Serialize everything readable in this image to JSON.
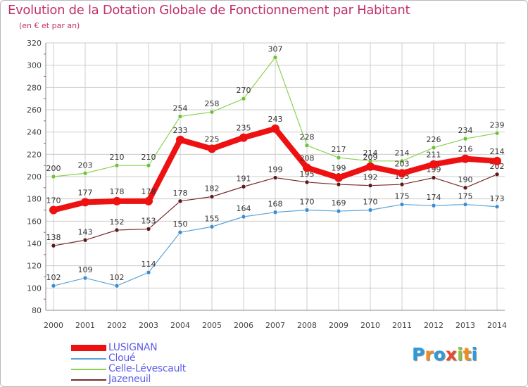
{
  "header": {
    "title": "Evolution de la Dotation Globale de Fonctionnement par Habitant",
    "subtitle": "(en € et par an)"
  },
  "colors": {
    "title": "#c0316b",
    "legend_text": "#5d5de8",
    "grid": "#cccccc",
    "axis_text": "#444444"
  },
  "logo": {
    "letters": [
      "P",
      "r",
      "o",
      "x",
      "i",
      "t",
      "i"
    ],
    "colors": [
      "#2d9adb",
      "#f08d1f",
      "#2d9adb",
      "#e84a2b",
      "#8cc63f",
      "#f08d1f",
      "#2d9adb"
    ]
  },
  "chart_data": {
    "type": "line",
    "title": "Evolution de la Dotation Globale de Fonctionnement par Habitant",
    "subtitle": "(en € et par an)",
    "xlabel": "",
    "ylabel": "",
    "ylim": [
      80,
      320
    ],
    "ytick_step": 20,
    "grid": true,
    "legend_placement": "bottom-left",
    "x": [
      "2000",
      "2001",
      "2002",
      "2003",
      "2004",
      "2005",
      "2006",
      "2007",
      "2008",
      "2009",
      "2010",
      "2011",
      "2012",
      "2013",
      "2014"
    ],
    "series": [
      {
        "name": "Celle-Lévescault",
        "color": "#8cd150",
        "marker": "#6cc23a",
        "width": 1.2,
        "values": [
          200,
          203,
          210,
          210,
          254,
          258,
          270,
          307,
          228,
          217,
          214,
          214,
          226,
          234,
          239
        ]
      },
      {
        "name": "Jazeneuil",
        "color": "#7a2a2a",
        "marker": "#5a1a1a",
        "width": 1.2,
        "values": [
          138,
          143,
          152,
          153,
          178,
          182,
          191,
          199,
          195,
          193,
          192,
          193,
          199,
          190,
          202
        ]
      },
      {
        "name": "Cloué",
        "color": "#5aa2d8",
        "marker": "#3c8cd0",
        "width": 1.2,
        "values": [
          102,
          109,
          102,
          114,
          150,
          155,
          164,
          168,
          170,
          169,
          170,
          175,
          174,
          175,
          173
        ]
      },
      {
        "name": "LUSIGNAN",
        "color": "#ee1111",
        "marker": "#ee1111",
        "width": 8,
        "values": [
          170,
          177,
          178,
          178,
          233,
          225,
          235,
          243,
          208,
          199,
          209,
          203,
          211,
          216,
          214
        ]
      }
    ],
    "legend_order": [
      "LUSIGNAN",
      "Cloué",
      "Celle-Lévescault",
      "Jazeneuil"
    ]
  }
}
